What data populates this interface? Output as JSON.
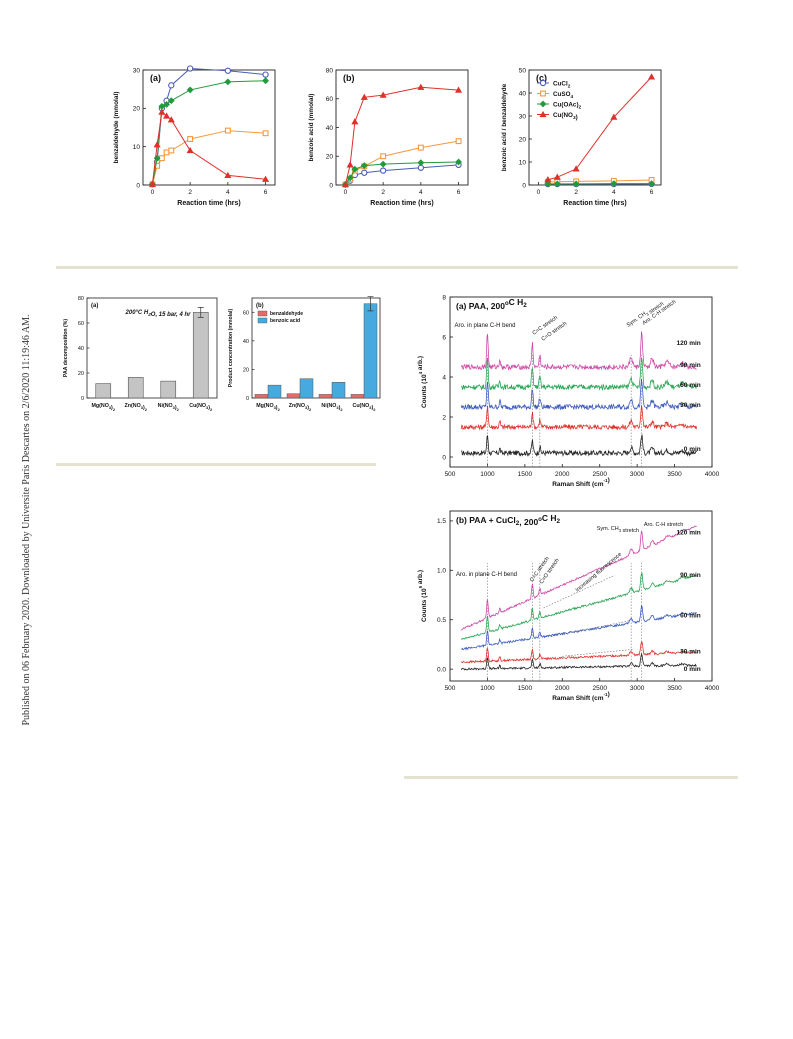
{
  "watermark": "Published on 06 February 2020. Downloaded by Universite Paris Descartes on 2/6/2020 11:19:46 AM.",
  "colors": {
    "CuCl2": "#4a5bb8",
    "CuSO4": "#f29a3c",
    "CuOAc2": "#229a3c",
    "CuNO32": "#e0302a",
    "gray": "#c4c4c4",
    "red": "#e8686b",
    "blue": "#46a9e0",
    "t0": "#222222",
    "t30": "#e0302a",
    "t60": "#3a5bc0",
    "t90": "#2aa655",
    "t120": "#d04aa8"
  },
  "fig1": {
    "xlabel": "Reaction time (hrs)",
    "legend": [
      "CuCl",
      "CuSO",
      "Cu(OAc)",
      "Cu(NO"
    ],
    "chart_data": [
      {
        "type": "line",
        "panel": "(a)",
        "ylabel": "benzaldehyde (mmolal)",
        "xlim": [
          -0.5,
          6.5
        ],
        "ylim": [
          0,
          30
        ],
        "xticks": [
          0,
          2,
          4,
          6
        ],
        "yticks": [
          0,
          10,
          20,
          30
        ],
        "series": [
          {
            "name": "CuCl2",
            "x": [
              0,
              0.25,
              0.5,
              0.75,
              1,
              2,
              4,
              6
            ],
            "y": [
              0.2,
              6,
              20,
              22,
              26,
              30.4,
              29.8,
              28.8
            ]
          },
          {
            "name": "CuSO4",
            "x": [
              0,
              0.25,
              0.5,
              0.75,
              1,
              2,
              4,
              6
            ],
            "y": [
              0.2,
              5,
              7,
              8.5,
              9,
              12,
              14.2,
              13.5
            ]
          },
          {
            "name": "Cu(OAc)2",
            "x": [
              0,
              0.25,
              0.5,
              0.75,
              1,
              2,
              4,
              6
            ],
            "y": [
              0.2,
              7,
              20.5,
              21,
              22,
              24.8,
              26.9,
              27.2
            ]
          },
          {
            "name": "Cu(NO3)2",
            "x": [
              0,
              0.25,
              0.5,
              0.75,
              1,
              2,
              4,
              6
            ],
            "y": [
              0.2,
              10.5,
              19,
              18,
              17,
              9,
              2.5,
              1.5
            ]
          }
        ]
      },
      {
        "type": "line",
        "panel": "(b)",
        "ylabel": "benzoic acid (mmolal)",
        "xlim": [
          -0.5,
          6.5
        ],
        "ylim": [
          0,
          80
        ],
        "xticks": [
          0,
          2,
          4,
          6
        ],
        "yticks": [
          0,
          20,
          40,
          60,
          80
        ],
        "series": [
          {
            "name": "CuCl2",
            "x": [
              0,
              0.25,
              0.5,
              1,
              2,
              4,
              6
            ],
            "y": [
              0.3,
              3,
              7,
              8.5,
              10,
              12,
              14
            ]
          },
          {
            "name": "CuSO4",
            "x": [
              0,
              0.25,
              0.5,
              1,
              2,
              4,
              6
            ],
            "y": [
              0.3,
              4,
              10,
              13,
              20,
              26,
              30.5
            ]
          },
          {
            "name": "Cu(OAc)2",
            "x": [
              0,
              0.25,
              0.5,
              1,
              2,
              4,
              6
            ],
            "y": [
              0.3,
              5,
              11,
              13.5,
              14.5,
              15.5,
              16
            ]
          },
          {
            "name": "Cu(NO3)2",
            "x": [
              0,
              0.25,
              0.5,
              1,
              2,
              4,
              6
            ],
            "y": [
              0.3,
              14,
              44,
              61,
              62.5,
              68,
              66
            ]
          }
        ]
      },
      {
        "type": "line",
        "panel": "(c)",
        "ylabel": "benzoic acid / benzaldehyde",
        "xlim": [
          -0.5,
          6.5
        ],
        "ylim": [
          0,
          50
        ],
        "xticks": [
          0,
          2,
          4,
          6
        ],
        "yticks": [
          0,
          10,
          20,
          30,
          40,
          50
        ],
        "series": [
          {
            "name": "CuCl2",
            "x": [
              0.5,
              1,
              2,
              4,
              6
            ],
            "y": [
              0.4,
              0.4,
              0.4,
              0.4,
              0.5
            ]
          },
          {
            "name": "CuSO4",
            "x": [
              0.5,
              1,
              2,
              4,
              6
            ],
            "y": [
              1.3,
              1.4,
              1.6,
              1.8,
              2.2
            ]
          },
          {
            "name": "Cu(OAc)2",
            "x": [
              0.5,
              1,
              2,
              4,
              6
            ],
            "y": [
              0.5,
              0.5,
              0.5,
              0.6,
              0.6
            ]
          },
          {
            "name": "Cu(NO3)2",
            "x": [
              0.5,
              1,
              2,
              4,
              6
            ],
            "y": [
              2.3,
              3.4,
              7,
              29.5,
              47
            ]
          }
        ]
      }
    ]
  },
  "fig2": {
    "a": {
      "label": "(a)",
      "annotation": "200°C H",
      "annotation_rest": "O, 15 bar, 4 hr",
      "ylabel": "PAA decomposition (%)",
      "cats": [
        "Mg(NO",
        "Zn(NO",
        "Ni(NO",
        "Cu(NO"
      ],
      "chart_data": {
        "type": "bar",
        "categories": [
          "Mg(NO3)2",
          "Zn(NO3)2",
          "Ni(NO3)2",
          "Cu(NO3)2"
        ],
        "values": [
          11.5,
          16.5,
          13.5,
          68.5
        ],
        "error": [
          0,
          0,
          0,
          4
        ],
        "ylim": [
          0,
          80
        ],
        "yticks": [
          0,
          20,
          40,
          60,
          80
        ]
      }
    },
    "b": {
      "label": "(b)",
      "ylabel": "Product concentration (mmolal)",
      "legend": [
        "benzaldehyde",
        "benzoic acid"
      ],
      "cats": [
        "Mg(NO",
        "Zn(NO",
        "Ni(NO",
        "Cu(NO"
      ],
      "chart_data": {
        "type": "bar",
        "categories": [
          "Mg(NO3)2",
          "Zn(NO3)2",
          "Ni(NO3)2",
          "Cu(NO3)2"
        ],
        "series": [
          {
            "name": "benzaldehyde",
            "values": [
              2.5,
              3,
              2.5,
              2.5
            ]
          },
          {
            "name": "benzoic acid",
            "values": [
              9,
              13.5,
              11,
              66
            ]
          }
        ],
        "error": [
          0,
          0,
          0,
          5
        ],
        "ylim": [
          0,
          70
        ],
        "yticks": [
          0,
          20,
          40,
          60
        ]
      }
    }
  },
  "fig3": {
    "a": {
      "title": "(a) PAA, 200",
      "title_rest": "C H",
      "title_o": "O",
      "ylabel": "Counts (10",
      "ylabel_rest": "arb.)",
      "xlabel": "Raman Shift (cm",
      "labels_peaks": [
        "Aro. in plane C-H bend",
        "C=C stretch",
        "C=O stretch",
        "Sym. CH",
        "stretch",
        "Aro. C-H stretch"
      ],
      "times": [
        "120 min",
        "90 min",
        "60 min",
        "30 min",
        "0 min"
      ],
      "chart_data": {
        "type": "line",
        "xlim": [
          500,
          4000
        ],
        "ylim": [
          -0.5,
          8
        ],
        "xticks": [
          500,
          1000,
          1500,
          2000,
          2500,
          3000,
          3500,
          4000
        ],
        "yticks": [
          0,
          2,
          4,
          6,
          8
        ],
        "series": [
          {
            "name": "0 min",
            "offset": 0.2
          },
          {
            "name": "30 min",
            "offset": 1.5
          },
          {
            "name": "60 min",
            "offset": 2.5
          },
          {
            "name": "90 min",
            "offset": 3.5
          },
          {
            "name": "120 min",
            "offset": 4.5
          }
        ]
      }
    },
    "b": {
      "title": "(b) PAA + CuCl",
      "title_rest": ", 200",
      "title_rest2": "C H",
      "title_o": "O",
      "ylabel": "Counts (10",
      "ylabel_rest": "arb.)",
      "xlabel": "Raman Shift (cm",
      "labels_peaks": [
        "Aro. in plane C-H bend",
        "C=C stretch",
        "C=O stretch",
        "Sym. CH",
        "stretch",
        "Aro. C-H stretch",
        "Increasing fluorescence"
      ],
      "times": [
        "120 min",
        "90 min",
        "60 min",
        "30 min",
        "0 min"
      ],
      "chart_data": {
        "type": "line",
        "xlim": [
          500,
          4000
        ],
        "ylim": [
          -0.12,
          1.6
        ],
        "xticks": [
          500,
          1000,
          1500,
          2000,
          2500,
          3000,
          3500,
          4000
        ],
        "yticks": [
          0.0,
          0.5,
          1.0,
          1.5
        ],
        "ytick_labels": [
          "0.0",
          "0.5",
          "1.0",
          "1.5"
        ],
        "series": [
          {
            "name": "0 min",
            "start": 0.0,
            "end": 0.04
          },
          {
            "name": "30 min",
            "start": 0.07,
            "end": 0.17
          },
          {
            "name": "60 min",
            "start": 0.2,
            "end": 0.57
          },
          {
            "name": "90 min",
            "start": 0.3,
            "end": 0.95
          },
          {
            "name": "120 min",
            "start": 0.4,
            "end": 1.45
          }
        ]
      }
    }
  }
}
